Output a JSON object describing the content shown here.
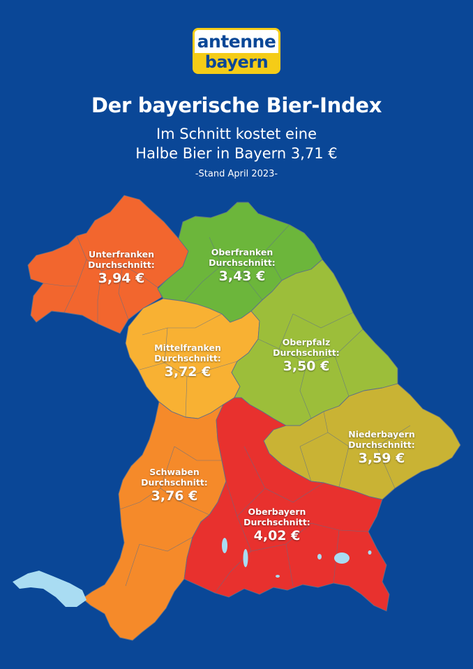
{
  "logo": {
    "line1": "antenne",
    "line2": "bayern"
  },
  "header": {
    "title": "Der bayerische Bier-Index",
    "subtitle_line1": "Im Schnitt kostet eine",
    "subtitle_line2": "Halbe Bier in Bayern 3,71 €",
    "stand": "-Stand April 2023-"
  },
  "colors": {
    "background": "#0a4797",
    "unterfranken": "#f2662e",
    "oberfranken": "#6cb63b",
    "mittelfranken": "#f8b133",
    "oberpfalz": "#9cbe3a",
    "niederbayern": "#c9b334",
    "schwaben": "#f58a2a",
    "oberbayern": "#e8312e",
    "lake": "#a9dcf2"
  },
  "regions": [
    {
      "id": "unterfranken",
      "name": "Unterfranken",
      "avg_label": "Durchschnitt:",
      "price": "3,94 €",
      "value": 3.94
    },
    {
      "id": "oberfranken",
      "name": "Oberfranken",
      "avg_label": "Durchschnitt:",
      "price": "3,43 €",
      "value": 3.43
    },
    {
      "id": "mittelfranken",
      "name": "Mittelfranken",
      "avg_label": "Durchschnitt:",
      "price": "3,72 €",
      "value": 3.72
    },
    {
      "id": "oberpfalz",
      "name": "Oberpfalz",
      "avg_label": "Durchschnitt:",
      "price": "3,50 €",
      "value": 3.5
    },
    {
      "id": "niederbayern",
      "name": "Niederbayern",
      "avg_label": "Durchschnitt:",
      "price": "3,59 €",
      "value": 3.59
    },
    {
      "id": "schwaben",
      "name": "Schwaben",
      "avg_label": "Durchschnitt:",
      "price": "3,76 €",
      "value": 3.76
    },
    {
      "id": "oberbayern",
      "name": "Oberbayern",
      "avg_label": "Durchschnitt:",
      "price": "4,02 €",
      "value": 4.02
    }
  ]
}
